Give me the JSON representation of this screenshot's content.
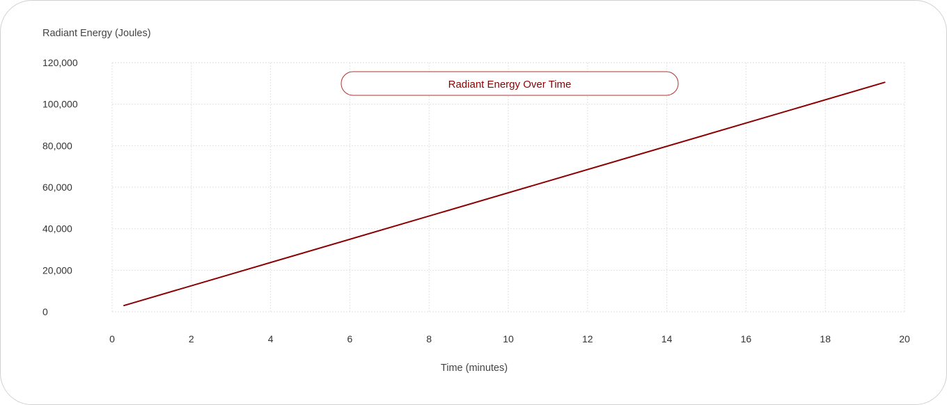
{
  "chart_data": {
    "type": "line",
    "title": "Radiant Energy Over Time",
    "xlabel": "Time (minutes)",
    "ylabel": "Radiant Energy (Joules)",
    "xlim": [
      0,
      20
    ],
    "ylim": [
      0,
      120000
    ],
    "x_ticks": [
      0,
      2,
      4,
      6,
      8,
      10,
      12,
      14,
      16,
      18,
      20
    ],
    "y_ticks": [
      0,
      20000,
      40000,
      60000,
      80000,
      100000,
      120000
    ],
    "x_tick_labels": [
      "0",
      "2",
      "4",
      "6",
      "8",
      "10",
      "12",
      "14",
      "16",
      "18",
      "20"
    ],
    "y_tick_labels": [
      "0",
      "20,000",
      "40,000",
      "60,000",
      "80,000",
      "100,000",
      "120,000"
    ],
    "grid": true,
    "grid_style": "dotted",
    "legend": "none",
    "series": [
      {
        "color": "#8b0000",
        "x": [
          0.3,
          19.5
        ],
        "y": [
          3000,
          110500
        ]
      }
    ]
  },
  "colors": {
    "line": "#8b0000",
    "title_text": "#8b0000",
    "title_border": "#b03030",
    "grid": "#e2e2e2",
    "tick_text": "#333333",
    "card_border": "#d0d0d0"
  }
}
